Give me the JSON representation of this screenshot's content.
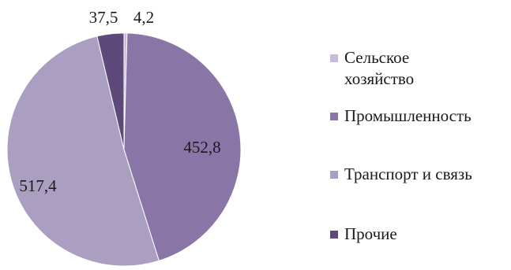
{
  "chart_data": {
    "type": "pie",
    "title": "",
    "slices": [
      {
        "label": "Сельское хозяйство",
        "value": 4.2,
        "value_text": "4,2",
        "color": "#c7bcd8"
      },
      {
        "label": "Промышленность",
        "value": 452.8,
        "value_text": "452,8",
        "color": "#8a76a6"
      },
      {
        "label": "Транспорт и связь",
        "value": 517.4,
        "value_text": "517,4",
        "color": "#aa9fc0"
      },
      {
        "label": "Прочие",
        "value": 37.5,
        "value_text": "37,5",
        "color": "#5d4a7a"
      }
    ],
    "legend_position": "right",
    "start_angle": "top",
    "direction": "clockwise"
  }
}
